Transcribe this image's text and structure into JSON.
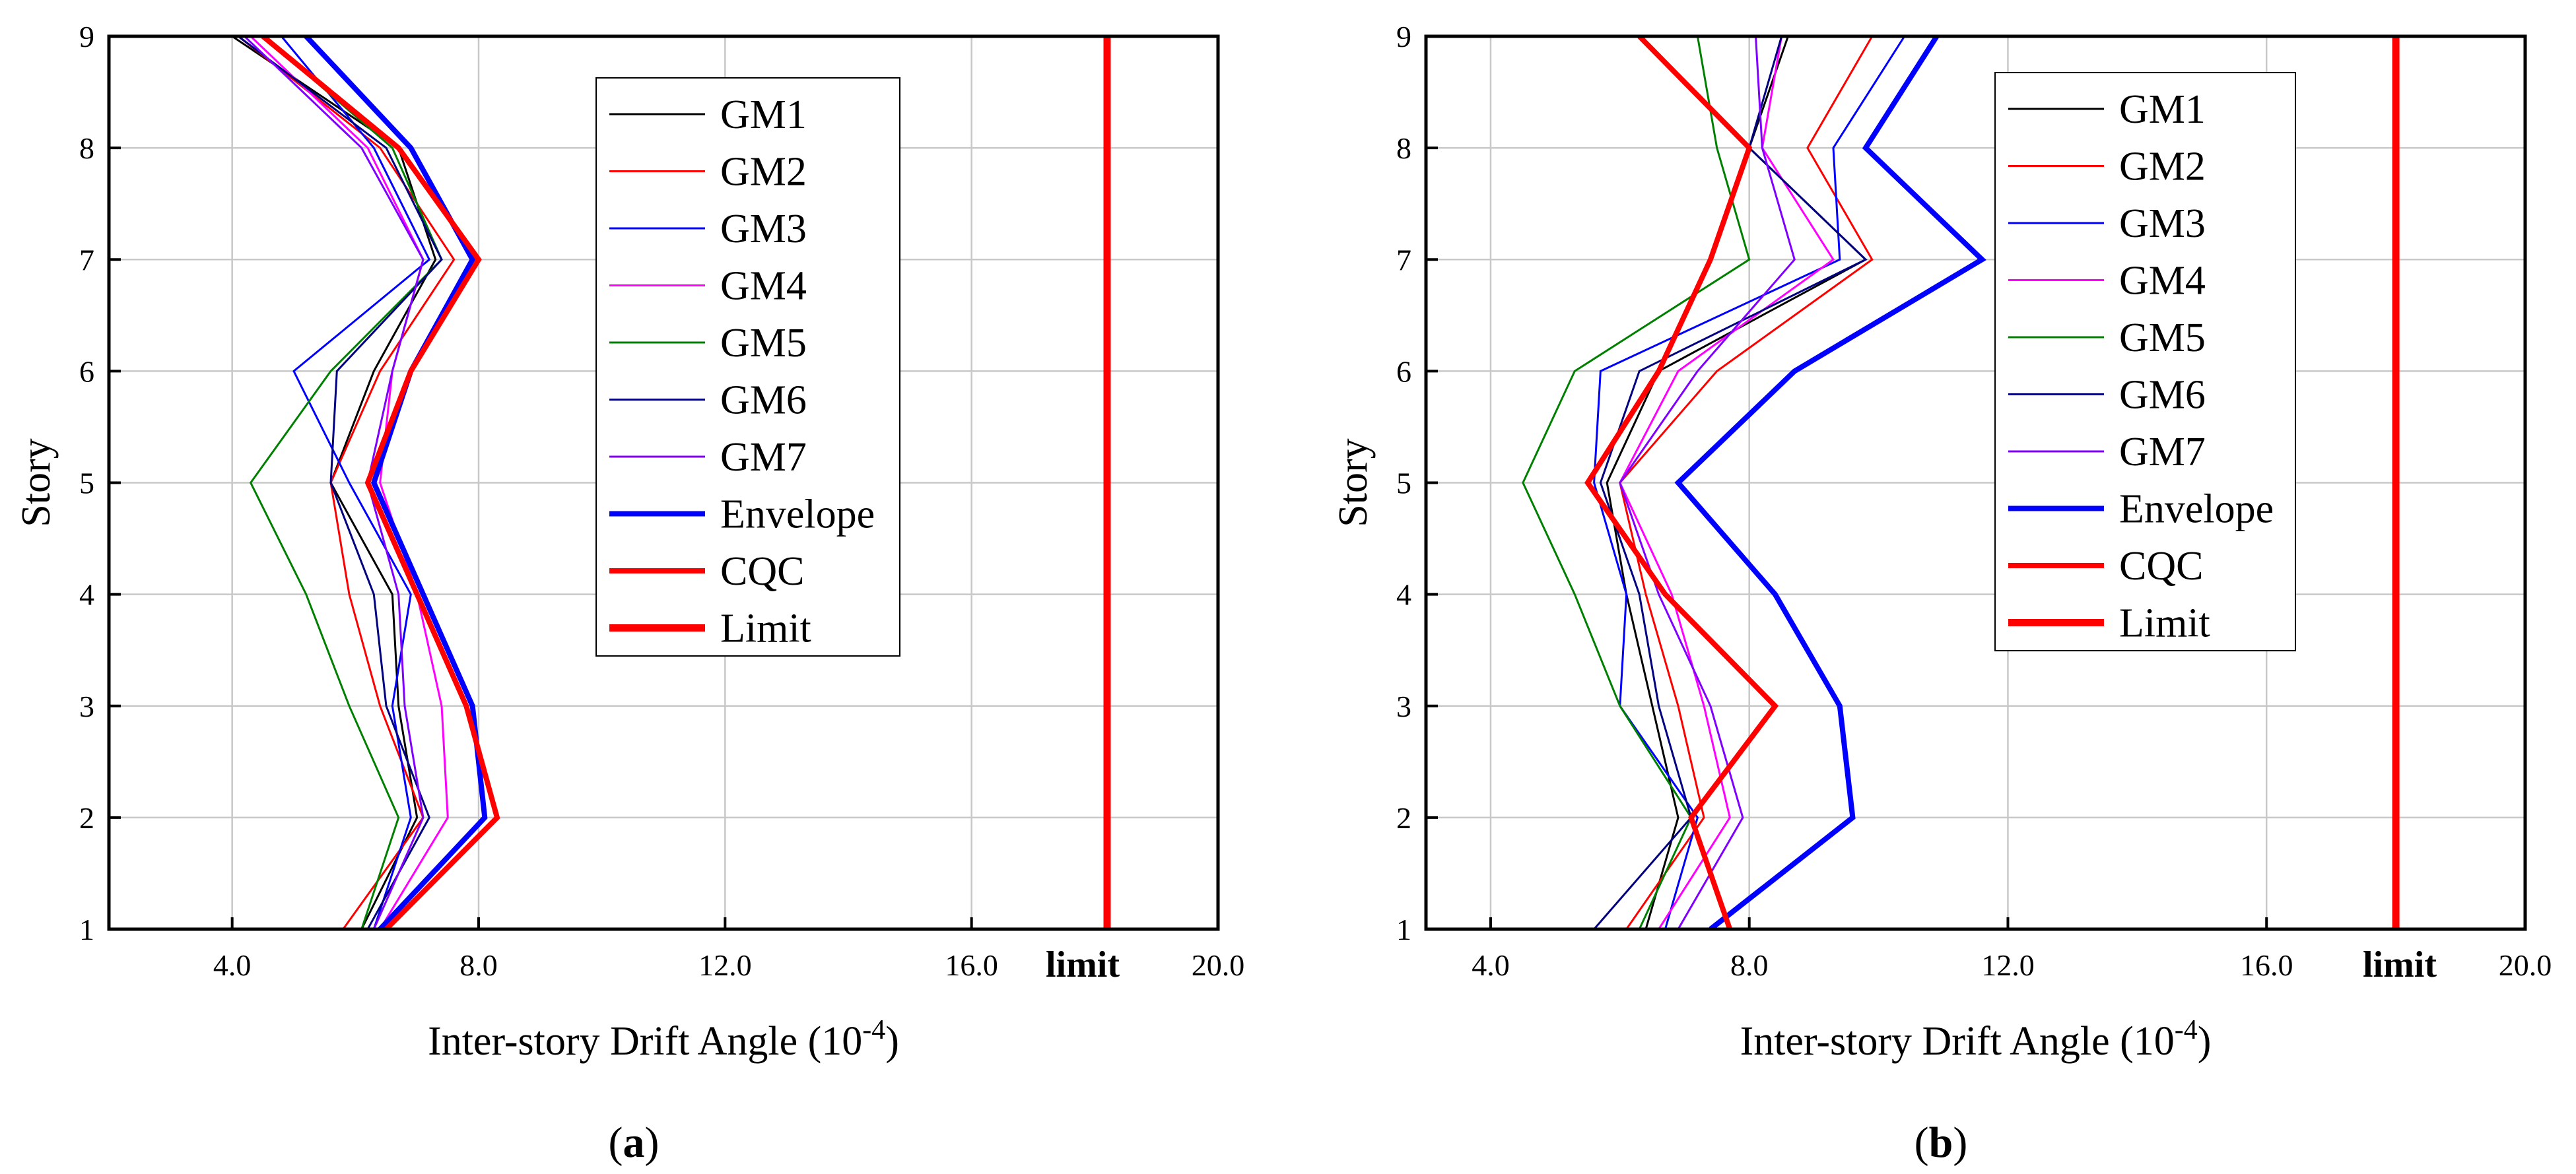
{
  "colors": {
    "GM1": "#000000",
    "GM2": "#ff0000",
    "GM3": "#0000ff",
    "GM4": "#ff00ff",
    "GM5": "#008000",
    "GM6": "#000080",
    "GM7": "#8000ff",
    "Envelope": "#0000ff",
    "CQC": "#ff0000",
    "Limit": "#ff0000",
    "grid": "#c8c8c8"
  },
  "chart_data": [
    {
      "type": "line",
      "panel_label_prefix": "(",
      "panel_label_letter": "a",
      "panel_label_suffix": ")",
      "xlabel": "Inter-story Drift Angle (10",
      "xlabel_exp": "-4",
      "xlabel_suffix": ")",
      "ylabel": "Story",
      "xlim": [
        2.0,
        20.0
      ],
      "ylim": [
        1,
        9
      ],
      "x_ticks": [
        4.0,
        8.0,
        12.0,
        16.0,
        20.0
      ],
      "x_tick_labels": [
        "4.0",
        "8.0",
        "12.0",
        "16.0",
        "20.0"
      ],
      "y_ticks": [
        1,
        2,
        3,
        4,
        5,
        6,
        7,
        8,
        9
      ],
      "y_tick_labels": [
        "1",
        "2",
        "3",
        "4",
        "5",
        "6",
        "7",
        "8",
        "9"
      ],
      "grid": true,
      "legend": "upper-center",
      "limit_value": 18.2,
      "limit_label": "limit",
      "series": [
        {
          "name": "GM1",
          "color": "#000000",
          "width": "thin",
          "x": [
            6.1,
            7.0,
            6.7,
            6.6,
            5.6,
            6.3,
            7.3,
            6.7,
            4.0
          ],
          "y": [
            1,
            2,
            3,
            4,
            5,
            6,
            7,
            8,
            9
          ]
        },
        {
          "name": "GM2",
          "color": "#ff0000",
          "width": "thin",
          "x": [
            5.8,
            7.1,
            6.4,
            5.9,
            5.6,
            6.4,
            7.6,
            6.4,
            4.1
          ],
          "y": [
            1,
            2,
            3,
            4,
            5,
            6,
            7,
            8,
            9
          ]
        },
        {
          "name": "GM3",
          "color": "#0000ff",
          "width": "thin",
          "x": [
            6.3,
            6.9,
            6.6,
            6.9,
            5.9,
            5.0,
            7.2,
            6.3,
            4.8
          ],
          "y": [
            1,
            2,
            3,
            4,
            5,
            6,
            7,
            8,
            9
          ]
        },
        {
          "name": "GM4",
          "color": "#ff00ff",
          "width": "thin",
          "x": [
            6.4,
            7.5,
            7.4,
            7.0,
            6.4,
            6.6,
            7.1,
            6.2,
            4.3
          ],
          "y": [
            1,
            2,
            3,
            4,
            5,
            6,
            7,
            8,
            9
          ]
        },
        {
          "name": "GM5",
          "color": "#008000",
          "width": "thin",
          "x": [
            6.1,
            6.7,
            5.9,
            5.2,
            4.3,
            5.6,
            7.4,
            6.6,
            4.5
          ],
          "y": [
            1,
            2,
            3,
            4,
            5,
            6,
            7,
            8,
            9
          ]
        },
        {
          "name": "GM6",
          "color": "#000080",
          "width": "thin",
          "x": [
            6.2,
            7.2,
            6.5,
            6.3,
            5.6,
            5.7,
            7.4,
            6.5,
            4.1
          ],
          "y": [
            1,
            2,
            3,
            4,
            5,
            6,
            7,
            8,
            9
          ]
        },
        {
          "name": "GM7",
          "color": "#8000ff",
          "width": "thin",
          "x": [
            6.3,
            7.1,
            6.8,
            6.7,
            6.2,
            6.6,
            7.1,
            6.1,
            4.2
          ],
          "y": [
            1,
            2,
            3,
            4,
            5,
            6,
            7,
            8,
            9
          ]
        },
        {
          "name": "Envelope",
          "color": "#0000ff",
          "width": "thick",
          "x": [
            6.4,
            8.1,
            7.9,
            7.1,
            6.3,
            6.9,
            7.9,
            6.9,
            5.2
          ],
          "y": [
            1,
            2,
            3,
            4,
            5,
            6,
            7,
            8,
            9
          ]
        },
        {
          "name": "CQC",
          "color": "#ff0000",
          "width": "thick",
          "x": [
            6.5,
            8.3,
            7.8,
            7.0,
            6.2,
            6.9,
            8.0,
            6.7,
            4.5
          ],
          "y": [
            1,
            2,
            3,
            4,
            5,
            6,
            7,
            8,
            9
          ]
        },
        {
          "name": "Limit",
          "color": "#ff0000",
          "width": "limit",
          "x": [
            18.2,
            18.2
          ],
          "y": [
            1,
            9
          ]
        }
      ]
    },
    {
      "type": "line",
      "panel_label_prefix": "(",
      "panel_label_letter": "b",
      "panel_label_suffix": ")",
      "xlabel": "Inter-story Drift Angle (10",
      "xlabel_exp": "-4",
      "xlabel_suffix": ")",
      "ylabel": "Story",
      "xlim": [
        3.0,
        20.0
      ],
      "ylim": [
        1,
        9
      ],
      "x_ticks": [
        4.0,
        8.0,
        12.0,
        16.0,
        20.0
      ],
      "x_tick_labels": [
        "4.0",
        "8.0",
        "12.0",
        "16.0",
        "20.0"
      ],
      "y_ticks": [
        1,
        2,
        3,
        4,
        5,
        6,
        7,
        8,
        9
      ],
      "y_tick_labels": [
        "1",
        "2",
        "3",
        "4",
        "5",
        "6",
        "7",
        "8",
        "9"
      ],
      "grid": true,
      "legend": "upper-center",
      "limit_value": 18.0,
      "limit_label": "limit",
      "series": [
        {
          "name": "GM1",
          "color": "#000000",
          "width": "thin",
          "x": [
            6.4,
            6.9,
            6.5,
            6.1,
            5.8,
            6.6,
            9.8,
            8.0,
            8.6
          ],
          "y": [
            1,
            2,
            3,
            4,
            5,
            6,
            7,
            8,
            9
          ]
        },
        {
          "name": "GM2",
          "color": "#ff0000",
          "width": "thin",
          "x": [
            6.1,
            7.3,
            6.9,
            6.4,
            6.0,
            7.5,
            9.9,
            8.9,
            9.9
          ],
          "y": [
            1,
            2,
            3,
            4,
            5,
            6,
            7,
            8,
            9
          ]
        },
        {
          "name": "GM3",
          "color": "#0000ff",
          "width": "thin",
          "x": [
            6.7,
            7.2,
            6.0,
            6.1,
            5.6,
            5.7,
            9.4,
            9.3,
            10.4
          ],
          "y": [
            1,
            2,
            3,
            4,
            5,
            6,
            7,
            8,
            9
          ]
        },
        {
          "name": "GM4",
          "color": "#ff00ff",
          "width": "thin",
          "x": [
            6.6,
            7.7,
            7.3,
            6.8,
            6.0,
            6.9,
            9.3,
            8.2,
            8.5
          ],
          "y": [
            1,
            2,
            3,
            4,
            5,
            6,
            7,
            8,
            9
          ]
        },
        {
          "name": "GM5",
          "color": "#008000",
          "width": "thin",
          "x": [
            6.3,
            7.1,
            6.0,
            5.3,
            4.5,
            5.3,
            8.0,
            7.5,
            7.2
          ],
          "y": [
            1,
            2,
            3,
            4,
            5,
            6,
            7,
            8,
            9
          ]
        },
        {
          "name": "GM6",
          "color": "#000080",
          "width": "thin",
          "x": [
            5.6,
            7.1,
            6.6,
            6.3,
            5.7,
            6.3,
            9.8,
            8.0,
            8.5
          ],
          "y": [
            1,
            2,
            3,
            4,
            5,
            6,
            7,
            8,
            9
          ]
        },
        {
          "name": "GM7",
          "color": "#8000ff",
          "width": "thin",
          "x": [
            6.9,
            7.9,
            7.4,
            6.6,
            6.0,
            7.2,
            8.7,
            8.2,
            8.1
          ],
          "y": [
            1,
            2,
            3,
            4,
            5,
            6,
            7,
            8,
            9
          ]
        },
        {
          "name": "Envelope",
          "color": "#0000ff",
          "width": "thick",
          "x": [
            7.4,
            9.6,
            9.4,
            8.4,
            6.9,
            8.7,
            11.6,
            9.8,
            10.9
          ],
          "y": [
            1,
            2,
            3,
            4,
            5,
            6,
            7,
            8,
            9
          ]
        },
        {
          "name": "CQC",
          "color": "#ff0000",
          "width": "thick",
          "x": [
            7.7,
            7.1,
            8.4,
            6.7,
            5.5,
            6.6,
            7.4,
            8.0,
            6.3
          ],
          "y": [
            1,
            2,
            3,
            4,
            5,
            6,
            7,
            8,
            9
          ]
        },
        {
          "name": "Limit",
          "color": "#ff0000",
          "width": "limit",
          "x": [
            18.0,
            18.0
          ],
          "y": [
            1,
            9
          ]
        }
      ]
    }
  ]
}
